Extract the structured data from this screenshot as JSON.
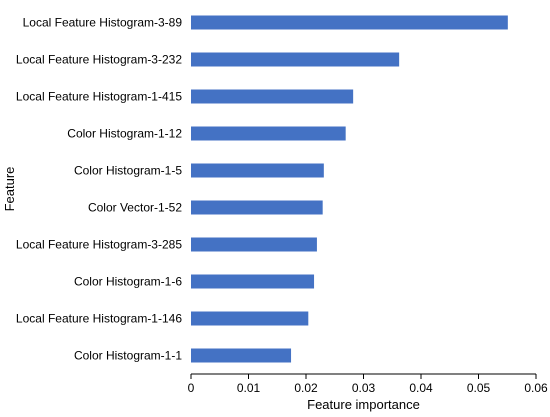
{
  "chart_data": {
    "type": "bar",
    "orientation": "horizontal",
    "categories": [
      "Local Feature Histogram-3-89",
      "Local Feature Histogram-3-232",
      "Local Feature Histogram-1-415",
      "Color Histogram-1-12",
      "Color Histogram-1-5",
      "Color Vector-1-52",
      "Local Feature Histogram-3-285",
      "Color Histogram-1-6",
      "Local Feature Histogram-1-146",
      "Color Histogram-1-1"
    ],
    "values": [
      0.0551,
      0.0362,
      0.0282,
      0.0269,
      0.0231,
      0.0229,
      0.0219,
      0.0214,
      0.0204,
      0.0174
    ],
    "xlabel": "Feature importance",
    "ylabel": "Feature",
    "xlim": [
      0,
      0.06
    ],
    "xticks": [
      0,
      0.01,
      0.02,
      0.03,
      0.04,
      0.05,
      0.06
    ],
    "xtick_labels": [
      "0",
      "0.01",
      "0.02",
      "0.03",
      "0.04",
      "0.05",
      "0.06"
    ],
    "grid": false,
    "bar_color": "#4472c4"
  }
}
